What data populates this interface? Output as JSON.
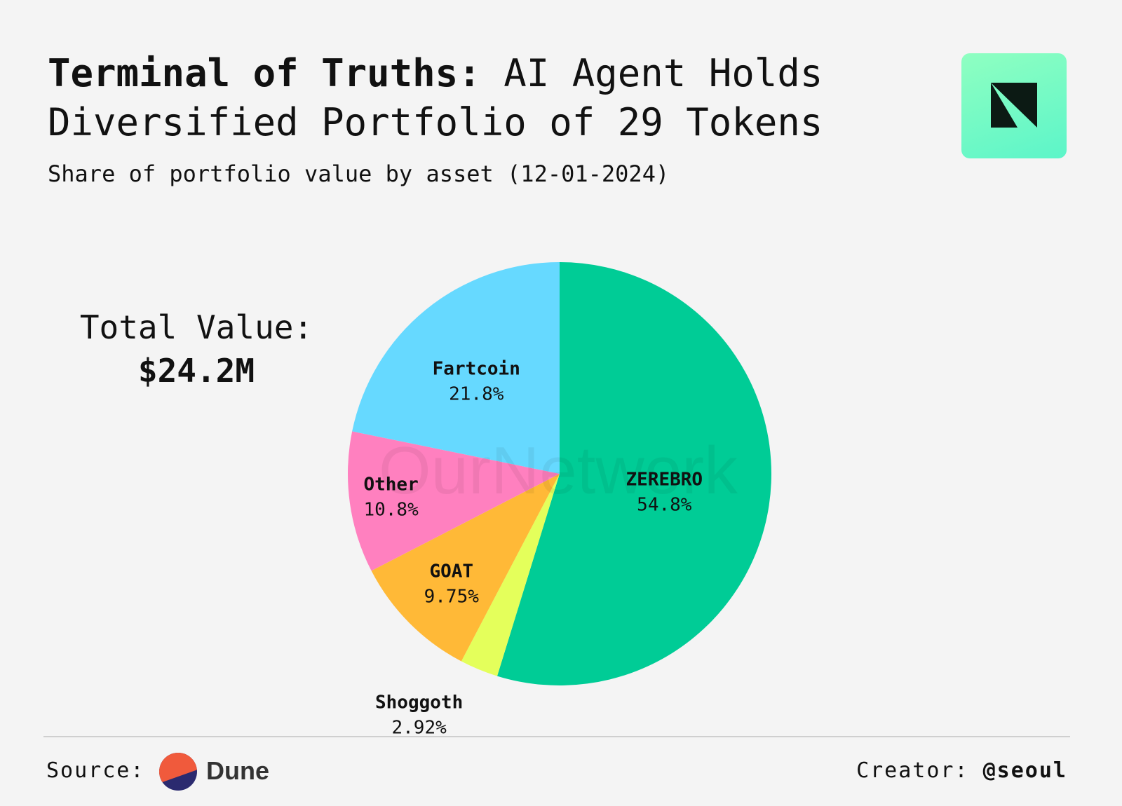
{
  "header": {
    "title_strong": "Terminal of Truths:",
    "title_rest": "AI Agent Holds Diversified Portfolio of 29 Tokens",
    "subtitle": "Share of portfolio value by asset (12-01-2024)"
  },
  "summary": {
    "total_label": "Total Value:",
    "total_value": "$24.2M"
  },
  "watermark": "OurNetwork",
  "footer": {
    "source_label": "Source:",
    "source_name": "Dune",
    "creator_label": "Creator:",
    "creator_handle": "@seoul"
  },
  "colors": {
    "ZEREBRO": "#00cc96",
    "Shoggoth": "#e4ff5b",
    "GOAT": "#ffb937",
    "Other": "#ff80bf",
    "Fartcoin": "#66d9ff",
    "background": "#f4f4f4",
    "logo_dark": "#0c1a14"
  },
  "chart_data": {
    "type": "pie",
    "title": "Terminal of Truths: AI Agent Holds Diversified Portfolio of 29 Tokens",
    "subtitle": "Share of portfolio value by asset (12-01-2024)",
    "start_angle": "12 o'clock",
    "direction": "clockwise",
    "slices": [
      {
        "label": "ZEREBRO",
        "value": 54.8,
        "display": "54.8%"
      },
      {
        "label": "Shoggoth",
        "value": 2.92,
        "display": "2.92%"
      },
      {
        "label": "GOAT",
        "value": 9.75,
        "display": "9.75%"
      },
      {
        "label": "Other",
        "value": 10.8,
        "display": "10.8%"
      },
      {
        "label": "Fartcoin",
        "value": 21.8,
        "display": "21.8%"
      }
    ]
  }
}
